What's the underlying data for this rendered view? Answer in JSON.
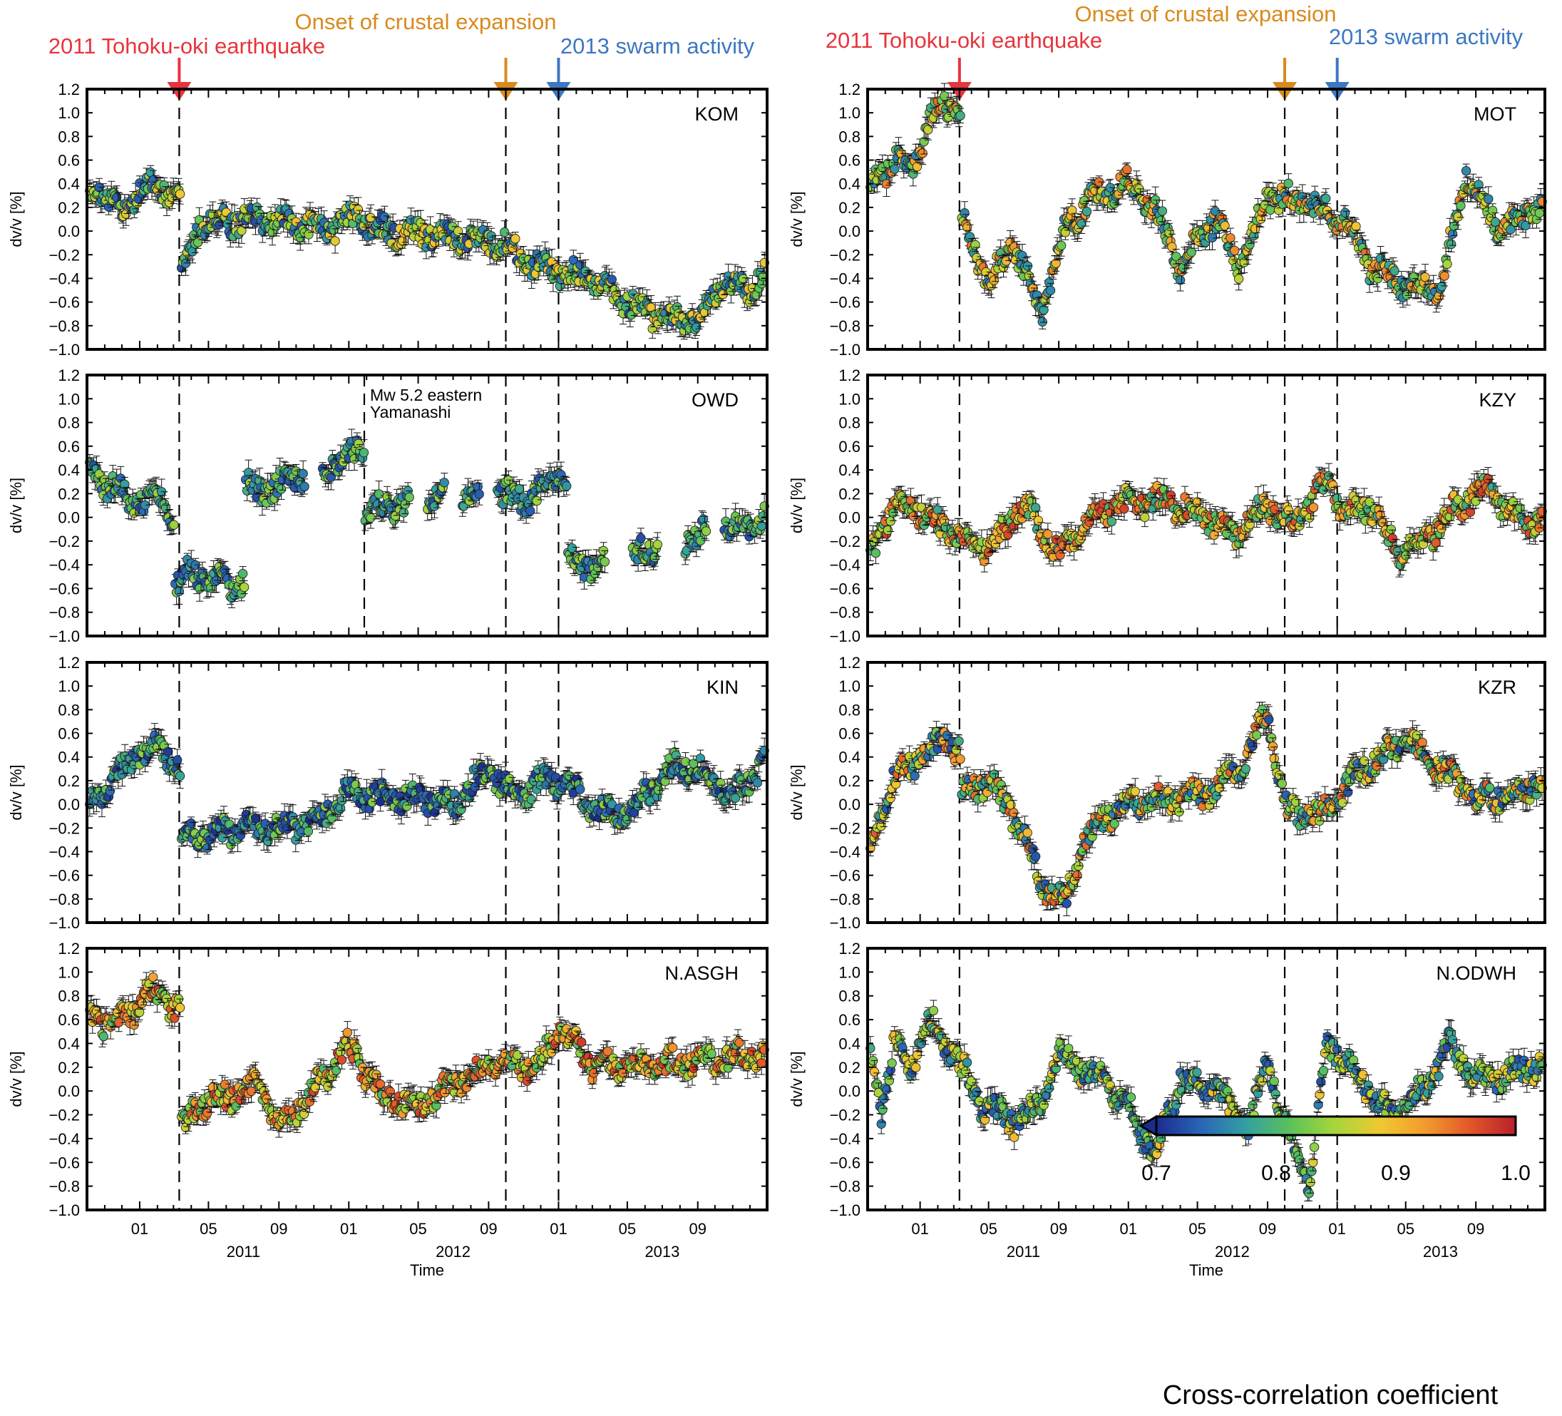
{
  "event_labels": {
    "tohoku": "2011 Tohoku-oki earthquake",
    "expansion": "Onset of crustal expansion",
    "swarm": "2013 swarm activity"
  },
  "colors": {
    "tohoku": "#e8343d",
    "expansion": "#d98a1c",
    "swarm": "#3c78c2"
  },
  "annotation": [
    "Mw 5.2 eastern",
    "Yamanashi"
  ],
  "y_axis_label": "dv/v [%]",
  "x_axis_title": "Time",
  "colorbar": {
    "title": "Cross-correlation coefficient",
    "min": 0.7,
    "max": 1.0,
    "tick_labels": [
      "0.7",
      "0.8",
      "0.9",
      "1.0"
    ],
    "stops": [
      "#1a2c8e",
      "#2a66b8",
      "#33a0a0",
      "#5cc25a",
      "#a8d63a",
      "#f0c832",
      "#f29a2e",
      "#e2562a",
      "#b8202a"
    ]
  },
  "chart_data": {
    "type": "scatter",
    "x_range": [
      "2010-10-01",
      "2013-12-31"
    ],
    "ylim": [
      -1.0,
      1.0
    ],
    "y_ticks": [
      "1.2",
      "1.0",
      "0.8",
      "0.6",
      "0.4",
      "0.2",
      "0.0",
      "−0.2",
      "−0.4",
      "−0.6",
      "−0.8",
      "−1.0"
    ],
    "month_ticks": [
      {
        "date": "2011-01-01",
        "label": "01"
      },
      {
        "date": "2011-05-01",
        "label": "05"
      },
      {
        "date": "2011-09-01",
        "label": "09"
      },
      {
        "date": "2012-01-01",
        "label": "01"
      },
      {
        "date": "2012-05-01",
        "label": "05"
      },
      {
        "date": "2012-09-01",
        "label": "09"
      },
      {
        "date": "2013-01-01",
        "label": "01"
      },
      {
        "date": "2013-05-01",
        "label": "05"
      },
      {
        "date": "2013-09-01",
        "label": "09"
      }
    ],
    "year_labels": [
      {
        "date": "2011-07-01",
        "label": "2011"
      },
      {
        "date": "2012-07-01",
        "label": "2012"
      },
      {
        "date": "2013-07-01",
        "label": "2013"
      }
    ],
    "event_dates": {
      "tohoku": "2011-03-11",
      "expansion": "2012-10-01",
      "swarm": "2013-01-01",
      "yamanashi": "2012-01-28"
    },
    "panels": [
      {
        "station": "KOM",
        "corr": [
          0.72,
          0.9
        ],
        "points": [
          [
            "2010-10-01",
            0.28
          ],
          [
            "2010-11-15",
            0.34
          ],
          [
            "2010-12-01",
            0.05
          ],
          [
            "2011-01-01",
            0.42
          ],
          [
            "2011-02-15",
            0.35
          ],
          [
            "2011-03-10",
            0.28
          ],
          [
            "2011-03-20",
            -0.35
          ],
          [
            "2011-04-15",
            0.05
          ],
          [
            "2011-06-01",
            0.08
          ],
          [
            "2011-08-01",
            0.1
          ],
          [
            "2011-10-01",
            0.05
          ],
          [
            "2011-12-01",
            0.03
          ],
          [
            "2012-01-15",
            0.12
          ],
          [
            "2012-03-01",
            0.0
          ],
          [
            "2012-06-01",
            -0.02
          ],
          [
            "2012-09-01",
            -0.08
          ],
          [
            "2012-10-01",
            -0.12
          ],
          [
            "2012-11-15",
            -0.28
          ],
          [
            "2013-01-01",
            -0.35
          ],
          [
            "2013-03-01",
            -0.42
          ],
          [
            "2013-05-01",
            -0.6
          ],
          [
            "2013-07-01",
            -0.75
          ],
          [
            "2013-09-01",
            -0.75
          ],
          [
            "2013-10-15",
            -0.45
          ],
          [
            "2013-12-01",
            -0.5
          ],
          [
            "2013-12-31",
            -0.3
          ]
        ]
      },
      {
        "station": "OWD",
        "corr": [
          0.72,
          0.85
        ],
        "points": [
          [
            "2010-10-01",
            0.34
          ],
          [
            "2010-11-15",
            0.28
          ],
          [
            "2010-12-15",
            0.12
          ],
          [
            "2011-02-01",
            0.2
          ],
          [
            "2011-02-25",
            -0.05
          ],
          [
            "2011-03-11",
            -0.55
          ],
          [
            "2011-04-01",
            -0.45
          ],
          [
            "2011-05-15",
            -0.55
          ],
          [
            "2011-06-30",
            -0.55
          ],
          [
            "2011-07-10",
            0.25
          ],
          [
            "2011-08-15",
            0.22
          ],
          [
            "2011-10-01",
            0.35
          ],
          [
            "2011-12-01",
            0.45
          ],
          [
            "2012-01-25",
            0.6
          ],
          [
            "2012-02-01",
            0.05
          ],
          [
            "2012-04-01",
            0.12
          ],
          [
            "2012-06-01",
            0.2
          ],
          [
            "2012-08-01",
            0.22
          ],
          [
            "2012-10-01",
            0.18
          ],
          [
            "2012-11-15",
            0.15
          ],
          [
            "2012-12-15",
            0.32
          ],
          [
            "2013-01-15",
            0.35
          ],
          [
            "2013-01-20",
            -0.38
          ],
          [
            "2013-03-01",
            -0.42
          ],
          [
            "2013-06-01",
            -0.3
          ],
          [
            "2013-09-01",
            -0.15
          ],
          [
            "2013-11-01",
            -0.08
          ],
          [
            "2013-12-31",
            0.0
          ]
        ]
      },
      {
        "station": "KIN",
        "corr": [
          0.7,
          0.84
        ],
        "points": [
          [
            "2010-10-01",
            -0.05
          ],
          [
            "2010-11-15",
            0.2
          ],
          [
            "2011-01-01",
            0.45
          ],
          [
            "2011-02-15",
            0.45
          ],
          [
            "2011-03-10",
            0.3
          ],
          [
            "2011-03-20",
            -0.25
          ],
          [
            "2011-05-01",
            -0.25
          ],
          [
            "2011-07-01",
            -0.2
          ],
          [
            "2011-09-01",
            -0.2
          ],
          [
            "2011-11-01",
            -0.15
          ],
          [
            "2012-01-01",
            0.1
          ],
          [
            "2012-03-01",
            0.05
          ],
          [
            "2012-05-01",
            0.05
          ],
          [
            "2012-07-01",
            0.0
          ],
          [
            "2012-09-01",
            0.3
          ],
          [
            "2012-10-15",
            0.05
          ],
          [
            "2012-12-01",
            0.2
          ],
          [
            "2013-01-15",
            0.2
          ],
          [
            "2013-03-01",
            -0.05
          ],
          [
            "2013-05-01",
            -0.1
          ],
          [
            "2013-06-15",
            0.15
          ],
          [
            "2013-08-01",
            0.35
          ],
          [
            "2013-09-15",
            0.25
          ],
          [
            "2013-11-01",
            0.05
          ],
          [
            "2013-12-31",
            0.4
          ]
        ]
      },
      {
        "station": "N.ASGH",
        "corr": [
          0.8,
          0.98
        ],
        "points": [
          [
            "2010-10-01",
            0.58
          ],
          [
            "2010-12-15",
            0.62
          ],
          [
            "2011-01-15",
            0.85
          ],
          [
            "2011-03-10",
            0.7
          ],
          [
            "2011-03-20",
            -0.3
          ],
          [
            "2011-04-15",
            -0.1
          ],
          [
            "2011-06-01",
            -0.05
          ],
          [
            "2011-08-01",
            0.05
          ],
          [
            "2011-09-01",
            -0.3
          ],
          [
            "2011-11-01",
            0.0
          ],
          [
            "2012-01-01",
            0.38
          ],
          [
            "2012-03-01",
            -0.05
          ],
          [
            "2012-05-01",
            -0.12
          ],
          [
            "2012-07-01",
            0.05
          ],
          [
            "2012-09-01",
            0.2
          ],
          [
            "2012-12-01",
            0.22
          ],
          [
            "2013-01-01",
            0.55
          ],
          [
            "2013-03-01",
            0.2
          ],
          [
            "2013-06-01",
            0.22
          ],
          [
            "2013-09-01",
            0.25
          ],
          [
            "2013-12-31",
            0.32
          ]
        ]
      },
      {
        "station": "MOT",
        "corr": [
          0.75,
          0.95
        ],
        "points": [
          [
            "2010-10-01",
            0.35
          ],
          [
            "2010-11-15",
            0.6
          ],
          [
            "2010-12-15",
            0.5
          ],
          [
            "2011-01-15",
            0.9
          ],
          [
            "2011-02-15",
            1.1
          ],
          [
            "2011-03-10",
            0.95
          ],
          [
            "2011-03-20",
            0.05
          ],
          [
            "2011-05-01",
            -0.45
          ],
          [
            "2011-06-15",
            -0.1
          ],
          [
            "2011-08-01",
            -0.7
          ],
          [
            "2011-09-15",
            0.05
          ],
          [
            "2011-11-01",
            0.3
          ],
          [
            "2012-01-01",
            0.4
          ],
          [
            "2012-02-15",
            0.2
          ],
          [
            "2012-04-01",
            -0.3
          ],
          [
            "2012-06-01",
            0.1
          ],
          [
            "2012-07-15",
            -0.3
          ],
          [
            "2012-09-01",
            0.3
          ],
          [
            "2012-11-01",
            0.25
          ],
          [
            "2013-01-15",
            0.1
          ],
          [
            "2013-03-01",
            -0.3
          ],
          [
            "2013-05-01",
            -0.45
          ],
          [
            "2013-07-01",
            -0.5
          ],
          [
            "2013-08-15",
            0.5
          ],
          [
            "2013-10-15",
            0.0
          ],
          [
            "2013-12-31",
            0.25
          ]
        ]
      },
      {
        "station": "KZY",
        "corr": [
          0.78,
          0.98
        ],
        "points": [
          [
            "2010-10-01",
            -0.4
          ],
          [
            "2010-11-15",
            0.1
          ],
          [
            "2011-01-01",
            0.05
          ],
          [
            "2011-03-01",
            -0.15
          ],
          [
            "2011-05-01",
            -0.25
          ],
          [
            "2011-07-01",
            0.1
          ],
          [
            "2011-09-01",
            -0.3
          ],
          [
            "2011-11-01",
            0.05
          ],
          [
            "2012-01-01",
            0.12
          ],
          [
            "2012-03-01",
            0.15
          ],
          [
            "2012-05-01",
            0.05
          ],
          [
            "2012-07-01",
            -0.15
          ],
          [
            "2012-09-01",
            0.1
          ],
          [
            "2012-10-15",
            -0.05
          ],
          [
            "2012-12-15",
            0.3
          ],
          [
            "2013-01-15",
            0.05
          ],
          [
            "2013-03-01",
            0.1
          ],
          [
            "2013-04-15",
            -0.3
          ],
          [
            "2013-06-01",
            -0.2
          ],
          [
            "2013-08-01",
            0.1
          ],
          [
            "2013-09-15",
            0.25
          ],
          [
            "2013-11-15",
            0.0
          ],
          [
            "2013-12-31",
            -0.02
          ]
        ]
      },
      {
        "station": "KZR",
        "corr": [
          0.72,
          0.96
        ],
        "points": [
          [
            "2010-10-01",
            -0.4
          ],
          [
            "2010-11-15",
            0.2
          ],
          [
            "2011-01-01",
            0.4
          ],
          [
            "2011-02-15",
            0.55
          ],
          [
            "2011-03-10",
            0.45
          ],
          [
            "2011-03-20",
            0.1
          ],
          [
            "2011-05-01",
            0.2
          ],
          [
            "2011-07-01",
            -0.2
          ],
          [
            "2011-08-01",
            -0.7
          ],
          [
            "2011-09-15",
            -0.8
          ],
          [
            "2011-10-15",
            -0.3
          ],
          [
            "2011-12-15",
            0.0
          ],
          [
            "2012-03-01",
            0.05
          ],
          [
            "2012-06-01",
            0.1
          ],
          [
            "2012-08-01",
            0.45
          ],
          [
            "2012-09-01",
            0.8
          ],
          [
            "2012-10-01",
            -0.05
          ],
          [
            "2012-12-01",
            -0.1
          ],
          [
            "2013-02-15",
            0.3
          ],
          [
            "2013-05-01",
            0.55
          ],
          [
            "2013-07-01",
            0.3
          ],
          [
            "2013-09-01",
            0.05
          ],
          [
            "2013-11-01",
            0.1
          ],
          [
            "2013-12-31",
            0.2
          ]
        ]
      },
      {
        "station": "N.ODWH",
        "corr": [
          0.72,
          0.9
        ],
        "points": [
          [
            "2010-10-01",
            0.45
          ],
          [
            "2010-10-25",
            -0.2
          ],
          [
            "2010-11-15",
            0.4
          ],
          [
            "2010-12-15",
            0.2
          ],
          [
            "2011-01-15",
            0.6
          ],
          [
            "2011-03-10",
            0.25
          ],
          [
            "2011-04-15",
            -0.1
          ],
          [
            "2011-06-15",
            -0.25
          ],
          [
            "2011-08-01",
            -0.1
          ],
          [
            "2011-09-01",
            0.3
          ],
          [
            "2011-11-01",
            0.15
          ],
          [
            "2012-01-01",
            -0.1
          ],
          [
            "2012-02-15",
            -0.55
          ],
          [
            "2012-04-01",
            0.1
          ],
          [
            "2012-06-01",
            0.0
          ],
          [
            "2012-08-01",
            -0.3
          ],
          [
            "2012-09-01",
            0.3
          ],
          [
            "2012-10-01",
            -0.3
          ],
          [
            "2012-11-15",
            -0.8
          ],
          [
            "2012-12-15",
            0.4
          ],
          [
            "2013-02-01",
            0.15
          ],
          [
            "2013-04-01",
            -0.2
          ],
          [
            "2013-06-01",
            0.0
          ],
          [
            "2013-07-15",
            0.4
          ],
          [
            "2013-09-01",
            0.1
          ],
          [
            "2013-12-31",
            0.22
          ]
        ]
      }
    ]
  }
}
